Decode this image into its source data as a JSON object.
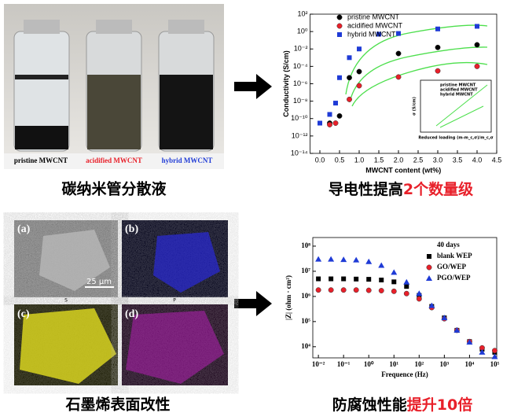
{
  "vials": {
    "labels": [
      "pristine MWCNT",
      "acidified MWCNT",
      "hybrid MWCNT"
    ],
    "caption": "碳纳米管分散液"
  },
  "conductivity": {
    "type": "scatter",
    "y_label": "Conductivity (S/cm)",
    "x_label": "MWCNT content (wt%)",
    "log_y": true,
    "xlim": [
      -0.25,
      4.5
    ],
    "ylim": [
      1e-14,
      100
    ],
    "xticks": [
      {
        "value": 0,
        "label": "0.0"
      },
      {
        "value": 0.5,
        "label": "0.5"
      },
      {
        "value": 1,
        "label": "1.0"
      },
      {
        "value": 1.5,
        "label": "1.5"
      },
      {
        "value": 2,
        "label": "2.0"
      },
      {
        "value": 2.5,
        "label": "2.5"
      },
      {
        "value": 3,
        "label": "3.0"
      },
      {
        "value": 3.5,
        "label": "3.5"
      },
      {
        "value": 4,
        "label": "4.0"
      },
      {
        "value": 4.5,
        "label": "4.5"
      }
    ],
    "yticks": [
      {
        "value": 100,
        "label": "10²"
      },
      {
        "value": 1,
        "label": "10⁰"
      },
      {
        "value": 0.01,
        "label": "10⁻²"
      },
      {
        "value": 0.0001,
        "label": "10⁻⁴"
      },
      {
        "value": 1e-06,
        "label": "10⁻⁶"
      },
      {
        "value": 1e-08,
        "label": "10⁻⁸"
      },
      {
        "value": 1e-10,
        "label": "10⁻¹⁰"
      },
      {
        "value": 1e-12,
        "label": "10⁻¹²"
      },
      {
        "value": 1e-14,
        "label": "10⁻¹⁴"
      }
    ],
    "series": [
      {
        "name": "pristine MWCNT",
        "color": "#000000",
        "marker": "circle",
        "x": [
          0.25,
          0.5,
          0.75,
          1,
          2,
          3,
          4
        ],
        "values": [
          3e-11,
          2e-10,
          5e-06,
          2.5e-05,
          0.003,
          0.015,
          0.03
        ]
      },
      {
        "name": "acidified MWCNT",
        "color": "#e8202a",
        "marker": "circle",
        "x": [
          0.25,
          0.4,
          0.75,
          1,
          2,
          3,
          4
        ],
        "values": [
          2e-11,
          3e-11,
          1.6e-08,
          6e-07,
          6e-06,
          3e-05,
          0.0001
        ]
      },
      {
        "name": "hybrid MWCNT",
        "color": "#1f3bd6",
        "marker": "square",
        "x": [
          0,
          0.25,
          0.4,
          0.5,
          0.75,
          1,
          1.5,
          2,
          3,
          4
        ],
        "values": [
          3e-11,
          3e-10,
          6e-09,
          5e-06,
          0.001,
          0.01,
          0.5,
          0.6,
          2,
          4
        ]
      }
    ],
    "inset": {
      "legend": [
        "pristine MWCNT",
        "acidified MWCNT",
        "hybrid MWCNT"
      ],
      "y_label": "σ (S/cm)",
      "x_label": "Reduced loading (m-m_c,σ)/m_c,σ"
    },
    "caption": [
      "导电性提高",
      "2个数量级"
    ]
  },
  "sem": {
    "panels": [
      "(a)",
      "(b)",
      "(c)",
      "(d)"
    ],
    "scale_bar": "25 μm",
    "element_labels": [
      "S",
      "P"
    ],
    "caption": "石墨烯表面改性"
  },
  "impedance": {
    "type": "scatter",
    "y_label": "|Z| (ohm · cm²)",
    "x_label": "Frequence (Hz)",
    "log_x": true,
    "log_y": true,
    "legend_title": "40 days",
    "xlim": [
      0.006,
      120000
    ],
    "ylim": [
      3600,
      220000000
    ],
    "xticks": [
      {
        "value": 0.01,
        "label": "10⁻²"
      },
      {
        "value": 0.1,
        "label": "10⁻¹"
      },
      {
        "value": 1,
        "label": "10⁰"
      },
      {
        "value": 10,
        "label": "10¹"
      },
      {
        "value": 100,
        "label": "10²"
      },
      {
        "value": 1000,
        "label": "10³"
      },
      {
        "value": 10000,
        "label": "10⁴"
      },
      {
        "value": 100000,
        "label": "10⁵"
      }
    ],
    "yticks": [
      {
        "value": 10000,
        "label": "10⁴"
      },
      {
        "value": 100000,
        "label": "10⁵"
      },
      {
        "value": 1000000,
        "label": "10⁶"
      },
      {
        "value": 10000000,
        "label": "10⁷"
      },
      {
        "value": 100000000,
        "label": "10⁸"
      }
    ],
    "x": [
      0.01,
      0.0316,
      0.1,
      0.316,
      1,
      3.16,
      10,
      31.6,
      100,
      316,
      1000,
      3160,
      10000,
      31600,
      100000
    ],
    "series": [
      {
        "name": "blank WEP",
        "color": "#000000",
        "marker": "square",
        "values": [
          5000000,
          5000000,
          5000000,
          4900000,
          4800000,
          4500000,
          3800000,
          2500000,
          1100000,
          400000,
          140000,
          45000,
          16000,
          8000,
          6000
        ]
      },
      {
        "name": "GO/WEP",
        "color": "#e8202a",
        "marker": "circle",
        "values": [
          1800000,
          1800000,
          1800000,
          1800000,
          1750000,
          1700000,
          1600000,
          1300000,
          800000,
          360000,
          130000,
          45000,
          16000,
          9000,
          7000
        ]
      },
      {
        "name": "PGO/WEP",
        "color": "#1f3bd6",
        "marker": "triangle",
        "values": [
          30000000,
          30000000,
          29000000,
          28000000,
          24000000,
          17000000,
          9000000,
          3700000,
          1300000,
          430000,
          140000,
          45000,
          15000,
          6000,
          4000
        ]
      }
    ],
    "caption": [
      "防腐蚀性能",
      "提升10倍"
    ]
  }
}
